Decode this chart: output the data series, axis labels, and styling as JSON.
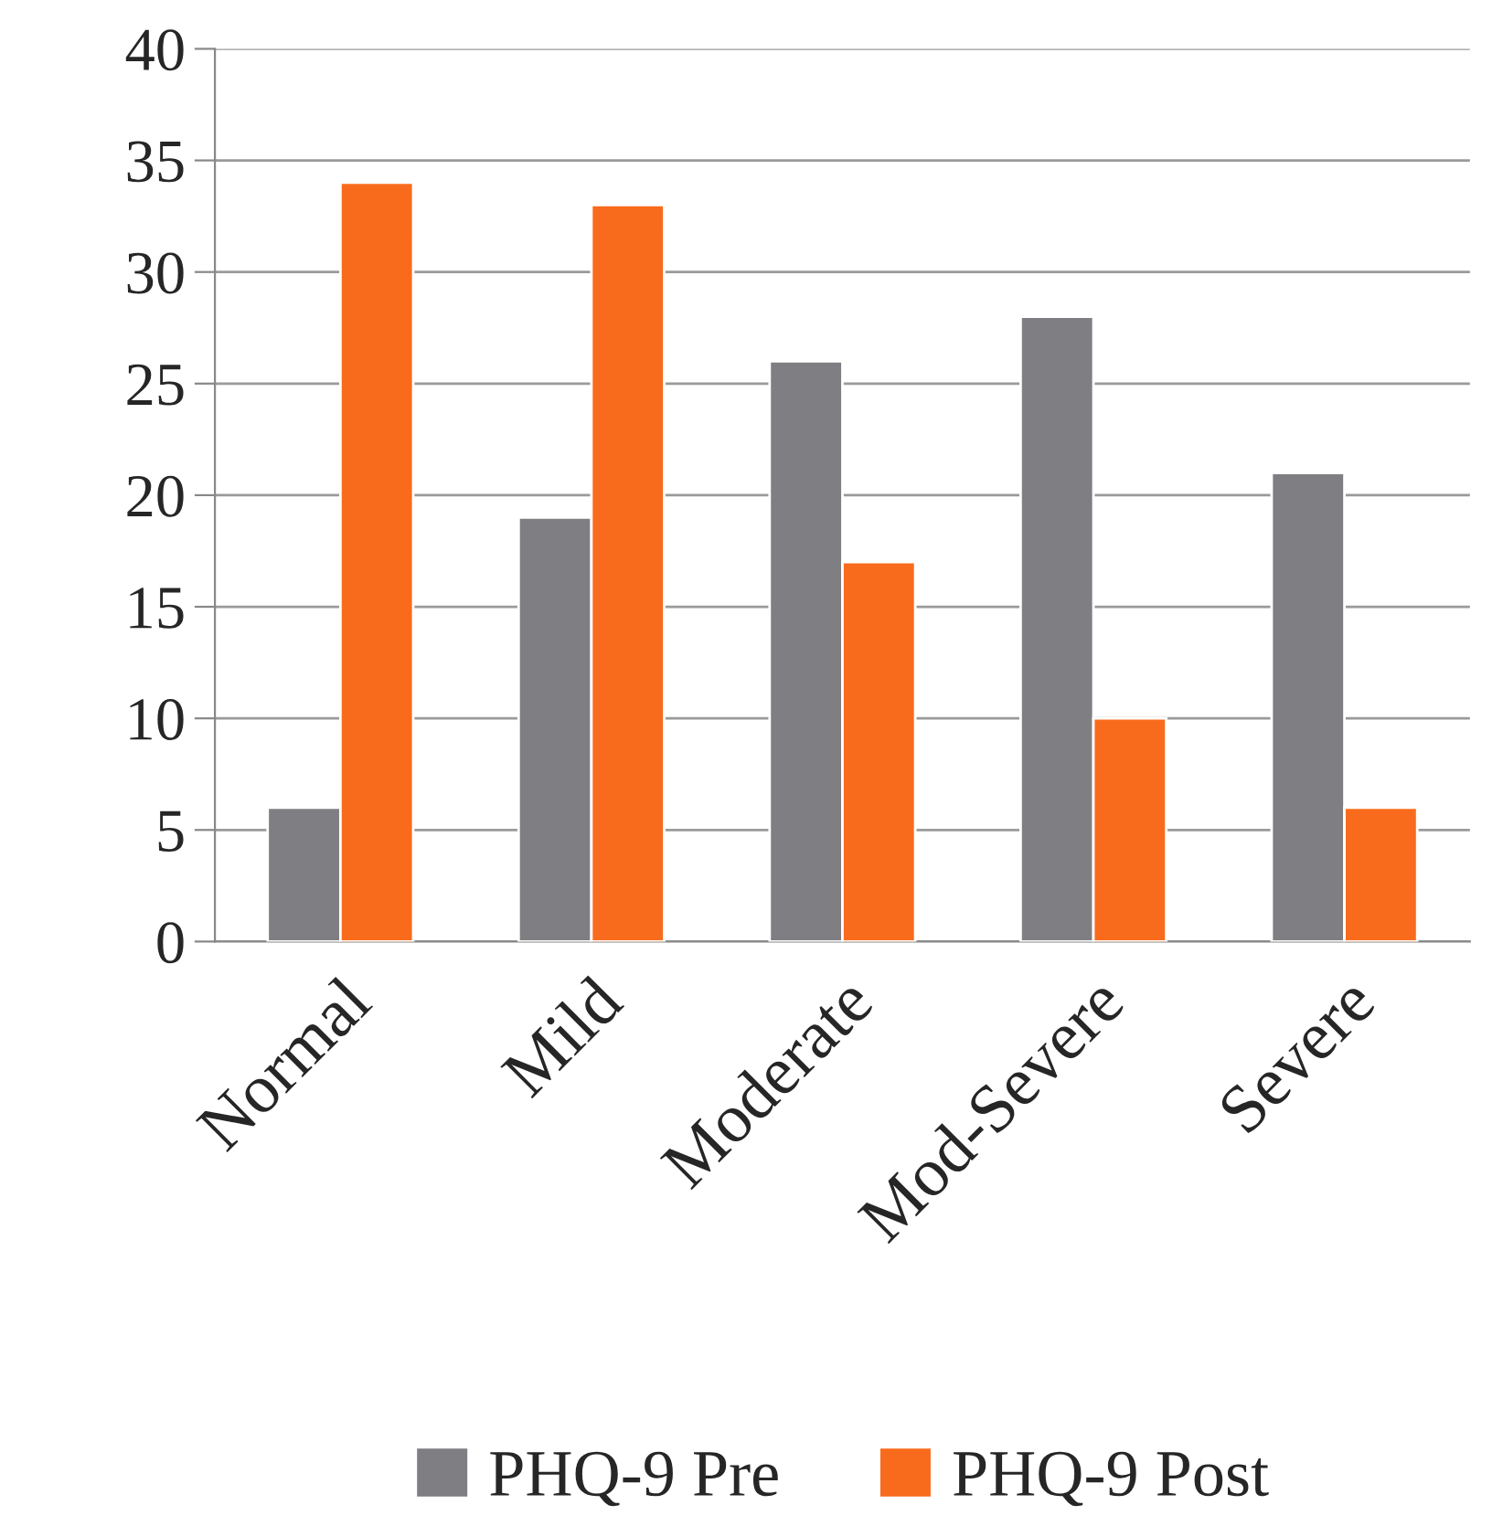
{
  "chart_data": {
    "type": "bar",
    "categories": [
      "Normal",
      "Mild",
      "Moderate",
      "Mod-Severe",
      "Severe"
    ],
    "series": [
      {
        "name": "PHQ-9 Pre",
        "color": "#7f7f83",
        "values": [
          6,
          19,
          26,
          28,
          21
        ]
      },
      {
        "name": "PHQ-9 Post",
        "color": "#f96b1c",
        "values": [
          34,
          33,
          17,
          10,
          6
        ]
      }
    ],
    "ylim": [
      0,
      40
    ],
    "yticks": [
      0,
      5,
      10,
      15,
      20,
      25,
      30,
      35,
      40
    ],
    "grid": "y",
    "legend": "bottom"
  }
}
